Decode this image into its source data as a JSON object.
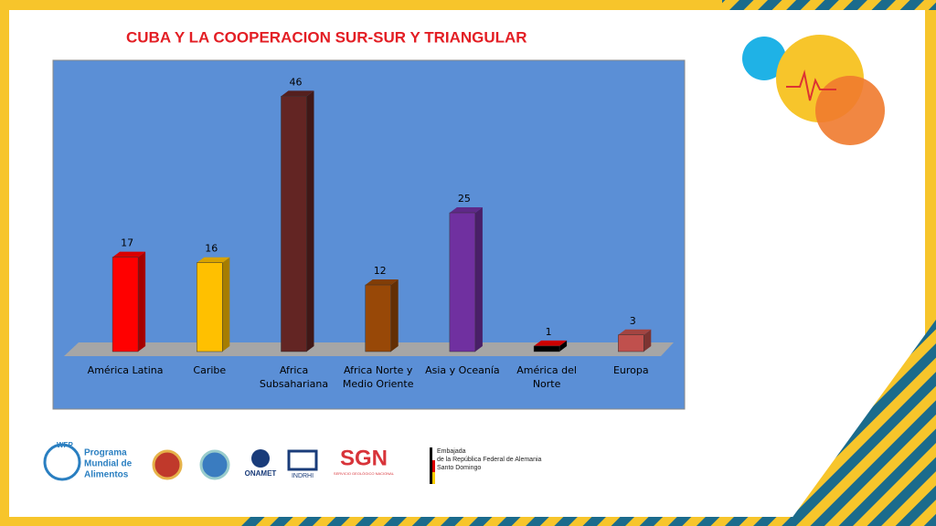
{
  "chart_data": {
    "type": "bar3d",
    "title": "CUBA Y LA COOPERACION SUR-SUR Y TRIANGULAR",
    "categories": [
      "América Latina",
      "Caribe",
      "Africa Subsahariana",
      "Africa Norte y Medio Oriente",
      "Asia y Oceanía",
      "América del Norte",
      "Europa"
    ],
    "values": [
      17,
      16,
      46,
      12,
      25,
      1,
      3
    ],
    "colors": [
      "#ff0000",
      "#ffc000",
      "#632523",
      "#984807",
      "#7030a0",
      "#000000",
      "#c0504d"
    ],
    "ylim": [
      0,
      50
    ]
  },
  "footer": {
    "wfp": "WFP",
    "wfp_name": [
      "Programa",
      "Mundial de",
      "Alimentos"
    ],
    "onamet": "ONAMET",
    "indrhi": "INDRHI",
    "sgn": "SGN",
    "sgn_name": "SERVICIO GEOLÓGICO NACIONAL",
    "embassy": [
      "Embajada",
      "de la República Federal de Alemania",
      "Santo Domingo"
    ]
  }
}
